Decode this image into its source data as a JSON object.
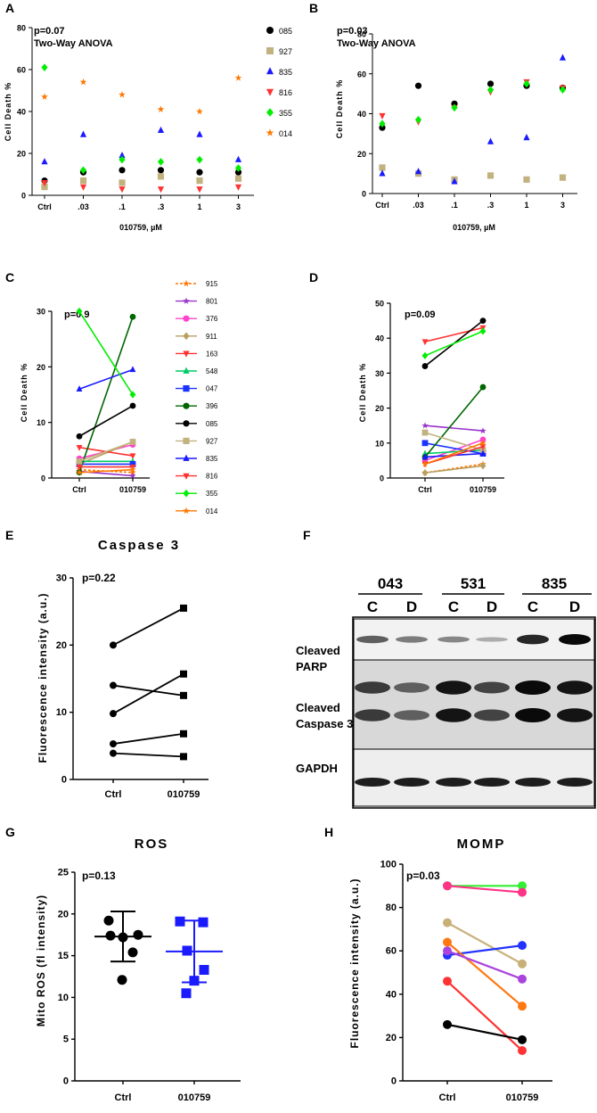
{
  "panels": {
    "A": "A",
    "B": "B",
    "C": "C",
    "D": "D",
    "E": "E",
    "F": "F",
    "G": "G",
    "H": "H"
  },
  "chart_data": [
    {
      "id": "A",
      "type": "scatter",
      "categories": [
        "Ctrl",
        ".03",
        ".1",
        ".3",
        "1",
        "3"
      ],
      "ylim": [
        0,
        80
      ],
      "yticks": [
        "0",
        "20",
        "40",
        "60",
        "80"
      ],
      "ylabel": "Cell Death %",
      "xlabel": "010759, µM",
      "annotation": "p=0.07",
      "annotation2": "Two-Way ANOVA",
      "series": [
        {
          "name": "085",
          "color": "#000000",
          "marker": "circle",
          "values": [
            7,
            11,
            12,
            12,
            11,
            11
          ]
        },
        {
          "name": "927",
          "color": "#c2b280",
          "marker": "square",
          "values": [
            4,
            7,
            6,
            9,
            7,
            8
          ]
        },
        {
          "name": "835",
          "color": "#1a1aff",
          "marker": "triangle",
          "values": [
            16,
            29,
            19,
            31,
            29,
            17
          ]
        },
        {
          "name": "816",
          "color": "#ff3333",
          "marker": "tri-down",
          "values": [
            6,
            4,
            3,
            3,
            3,
            4
          ]
        },
        {
          "name": "355",
          "color": "#00ee00",
          "marker": "diamond",
          "values": [
            61,
            12,
            17,
            16,
            17,
            13
          ]
        },
        {
          "name": "014",
          "color": "#ff7700",
          "marker": "star",
          "values": [
            47,
            54,
            48,
            41,
            40,
            56
          ]
        }
      ]
    },
    {
      "id": "B",
      "type": "scatter",
      "categories": [
        "Ctrl",
        ".03",
        ".1",
        ".3",
        "1",
        "3"
      ],
      "ylim": [
        0,
        80
      ],
      "yticks": [
        "0",
        "20",
        "40",
        "60",
        "80"
      ],
      "ylabel": "Cell Death %",
      "xlabel": "010759, µM",
      "annotation": "p=0.03",
      "annotation2": "Two-Way ANOVA",
      "series": [
        {
          "name": "085",
          "color": "#000000",
          "marker": "circle",
          "values": [
            33,
            54,
            45,
            55,
            54,
            53
          ]
        },
        {
          "name": "927",
          "color": "#c2b280",
          "marker": "square",
          "values": [
            13,
            10,
            7,
            9,
            7,
            8
          ]
        },
        {
          "name": "835",
          "color": "#1a1aff",
          "marker": "triangle",
          "values": [
            10,
            11,
            6,
            26,
            28,
            68
          ]
        },
        {
          "name": "816",
          "color": "#ff3333",
          "marker": "tri-down",
          "values": [
            39,
            36,
            43,
            51,
            56,
            53
          ]
        },
        {
          "name": "355",
          "color": "#00ee00",
          "marker": "diamond",
          "values": [
            35,
            37,
            43,
            52,
            55,
            52
          ]
        }
      ]
    },
    {
      "id": "C",
      "type": "line",
      "categories": [
        "Ctrl",
        "010759"
      ],
      "ylim": [
        0,
        30
      ],
      "yticks": [
        "0",
        "10",
        "20",
        "30"
      ],
      "ylabel": "Cell Death %",
      "annotation": "p=0.9",
      "legend": [
        "915",
        "801",
        "376",
        "911",
        "163",
        "548",
        "047",
        "396",
        "085",
        "927",
        "835",
        "816",
        "355",
        "014"
      ],
      "series": [
        {
          "name": "915",
          "color": "#ff7700",
          "marker": "star",
          "values": [
            1.5,
            1.0
          ]
        },
        {
          "name": "801",
          "color": "#9933cc",
          "marker": "star",
          "values": [
            1.2,
            0.4
          ]
        },
        {
          "name": "376",
          "color": "#ff44cc",
          "marker": "circle",
          "values": [
            3.5,
            6.0
          ]
        },
        {
          "name": "911",
          "color": "#b8a060",
          "marker": "diamond",
          "values": [
            2.5,
            6.5
          ]
        },
        {
          "name": "163",
          "color": "#ff3333",
          "marker": "tri-down",
          "values": [
            5.5,
            4.0
          ]
        },
        {
          "name": "548",
          "color": "#00cc66",
          "marker": "triangle",
          "values": [
            3.0,
            3.0
          ]
        },
        {
          "name": "047",
          "color": "#1a33ff",
          "marker": "square",
          "values": [
            2.5,
            2.5
          ]
        },
        {
          "name": "396",
          "color": "#006600",
          "marker": "circle",
          "values": [
            1.0,
            29.0
          ]
        },
        {
          "name": "085",
          "color": "#000000",
          "marker": "circle",
          "values": [
            7.5,
            13.0
          ]
        },
        {
          "name": "927",
          "color": "#c2b280",
          "marker": "square",
          "values": [
            3.0,
            6.5
          ]
        },
        {
          "name": "835",
          "color": "#1a1aff",
          "marker": "triangle",
          "values": [
            16.0,
            19.5
          ]
        },
        {
          "name": "816",
          "color": "#ff3333",
          "marker": "tri-down",
          "values": [
            2.0,
            2.0
          ]
        },
        {
          "name": "355",
          "color": "#00ee00",
          "marker": "diamond",
          "values": [
            30.0,
            15.0
          ]
        },
        {
          "name": "014",
          "color": "#ff7700",
          "marker": "star",
          "values": [
            1.0,
            1.5
          ]
        }
      ]
    },
    {
      "id": "D",
      "type": "line",
      "categories": [
        "Ctrl",
        "010759"
      ],
      "ylim": [
        0,
        50
      ],
      "yticks": [
        "0",
        "10",
        "20",
        "30",
        "40",
        "50"
      ],
      "ylabel": "Cell Death %",
      "annotation": "p=0.09",
      "series": [
        {
          "name": "915",
          "color": "#ff7700",
          "marker": "star",
          "values": [
            1.5,
            4.0
          ]
        },
        {
          "name": "801",
          "color": "#9933cc",
          "marker": "star",
          "values": [
            15,
            13.5
          ]
        },
        {
          "name": "376",
          "color": "#ff44cc",
          "marker": "circle",
          "values": [
            5,
            11
          ]
        },
        {
          "name": "911",
          "color": "#b8a060",
          "marker": "diamond",
          "values": [
            1.5,
            3.5
          ]
        },
        {
          "name": "163",
          "color": "#ff3333",
          "marker": "tri-down",
          "values": [
            39,
            43
          ]
        },
        {
          "name": "548",
          "color": "#00cc66",
          "marker": "triangle",
          "values": [
            7,
            8
          ]
        },
        {
          "name": "047",
          "color": "#1a33ff",
          "marker": "square",
          "values": [
            10,
            7
          ]
        },
        {
          "name": "396",
          "color": "#006600",
          "marker": "circle",
          "values": [
            6,
            26
          ]
        },
        {
          "name": "085",
          "color": "#000000",
          "marker": "circle",
          "values": [
            32,
            45
          ]
        },
        {
          "name": "927",
          "color": "#c2b280",
          "marker": "square",
          "values": [
            13,
            8
          ]
        },
        {
          "name": "835",
          "color": "#1a1aff",
          "marker": "triangle",
          "values": [
            6,
            7
          ]
        },
        {
          "name": "816",
          "color": "#ff3333",
          "marker": "tri-down",
          "values": [
            4,
            9
          ]
        },
        {
          "name": "355",
          "color": "#00ee00",
          "marker": "diamond",
          "values": [
            35,
            42
          ]
        },
        {
          "name": "014",
          "color": "#ff7700",
          "marker": "star",
          "values": [
            4,
            10
          ]
        }
      ]
    },
    {
      "id": "E",
      "type": "line",
      "title": "Caspase 3",
      "categories": [
        "Ctrl",
        "010759"
      ],
      "ylim": [
        0,
        30
      ],
      "yticks": [
        "0",
        "10",
        "20",
        "30"
      ],
      "ylabel": "Fluorescence intensity (a.u.)",
      "annotation": "p=0.22",
      "series": [
        {
          "name": "s1",
          "color": "#000000",
          "values": [
            20,
            25.5
          ]
        },
        {
          "name": "s2",
          "color": "#000000",
          "values": [
            14,
            12.5
          ]
        },
        {
          "name": "s3",
          "color": "#000000",
          "values": [
            9.8,
            15.7
          ]
        },
        {
          "name": "s4",
          "color": "#000000",
          "values": [
            5.3,
            6.8
          ]
        },
        {
          "name": "s5",
          "color": "#000000",
          "values": [
            3.9,
            3.4
          ]
        }
      ]
    },
    {
      "id": "G",
      "type": "scatter",
      "title": "ROS",
      "categories": [
        "Ctrl",
        "010759"
      ],
      "ylim": [
        0,
        25
      ],
      "yticks": [
        "0",
        "5",
        "10",
        "15",
        "20",
        "25"
      ],
      "ylabel": "Mito ROS (fl intensity)",
      "annotation": "p=0.13",
      "groups": [
        {
          "name": "Ctrl",
          "color": "#000000",
          "marker": "circle",
          "mean": 17.3,
          "sd": 3.0,
          "values": [
            19.2,
            17.4,
            17.2,
            17.5,
            15.4,
            12.1
          ]
        },
        {
          "name": "010759",
          "color": "#1a1aff",
          "marker": "square",
          "mean": 15.5,
          "sd": 3.7,
          "values": [
            19.1,
            19.0,
            15.6,
            13.3,
            12.0,
            10.5
          ]
        }
      ]
    },
    {
      "id": "H",
      "type": "line",
      "title": "MOMP",
      "categories": [
        "Ctrl",
        "010759"
      ],
      "ylim": [
        0,
        100
      ],
      "yticks": [
        "0",
        "20",
        "40",
        "60",
        "80",
        "100"
      ],
      "ylabel": "Fluorescence intensity (a.u.)",
      "annotation": "p=0.03",
      "series": [
        {
          "name": "green",
          "color": "#33ee33",
          "values": [
            90,
            90
          ]
        },
        {
          "name": "pink",
          "color": "#ff3388",
          "values": [
            90,
            87
          ]
        },
        {
          "name": "tan",
          "color": "#c8b078",
          "values": [
            73,
            54
          ]
        },
        {
          "name": "blue",
          "color": "#2233ff",
          "values": [
            58,
            62.5
          ]
        },
        {
          "name": "orange",
          "color": "#ff7711",
          "values": [
            64,
            34.5
          ]
        },
        {
          "name": "purple",
          "color": "#aa44dd",
          "values": [
            60,
            47
          ]
        },
        {
          "name": "red",
          "color": "#ff3333",
          "values": [
            46,
            14
          ]
        },
        {
          "name": "black",
          "color": "#000000",
          "values": [
            26,
            19
          ]
        }
      ]
    }
  ],
  "western_blot": {
    "samples": [
      "043",
      "531",
      "835"
    ],
    "lanes": [
      "C",
      "D",
      "C",
      "D",
      "C",
      "D"
    ],
    "rows": [
      {
        "label1": "Cleaved",
        "label2": "PARP",
        "intensity": [
          0.55,
          0.4,
          0.35,
          0.15,
          0.85,
          1.0
        ]
      },
      {
        "label1": "Cleaved",
        "label2": "Caspase 3",
        "intensity": [
          0.75,
          0.55,
          0.95,
          0.7,
          1.0,
          0.95
        ]
      },
      {
        "label1": "GAPDH",
        "label2": "",
        "intensity": [
          0.9,
          0.9,
          0.9,
          0.9,
          0.9,
          0.9
        ]
      }
    ]
  }
}
